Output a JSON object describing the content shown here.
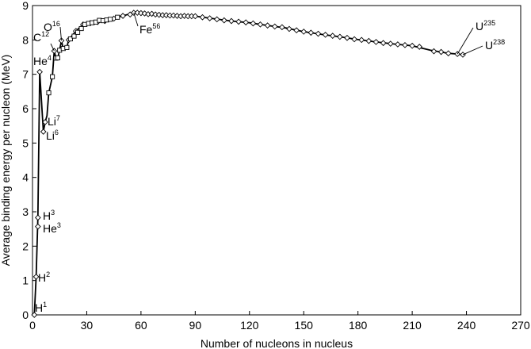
{
  "chart_data": {
    "type": "scatter",
    "title": "",
    "xlabel": "Number of nucleons in nucleus",
    "ylabel": "Average binding energy per nucleon (MeV)",
    "xlim": [
      0,
      270
    ],
    "ylim": [
      0,
      9
    ],
    "xticks": [
      0,
      30,
      60,
      90,
      120,
      150,
      180,
      210,
      240,
      270
    ],
    "yticks": [
      0,
      1,
      2,
      3,
      4,
      5,
      6,
      7,
      8,
      9
    ],
    "grid": false,
    "series": [
      {
        "marker": "diamond",
        "points": [
          [
            1,
            0
          ],
          [
            2,
            1.11
          ],
          [
            3,
            2.83
          ],
          [
            3,
            2.57
          ],
          [
            4,
            7.07
          ],
          [
            6,
            5.33
          ],
          [
            7,
            5.61
          ],
          [
            12,
            7.68
          ],
          [
            16,
            7.98
          ],
          [
            56,
            8.79
          ],
          [
            235,
            7.59
          ],
          [
            238,
            7.57
          ],
          [
            20,
            8.0
          ],
          [
            24,
            8.26
          ],
          [
            28,
            8.45
          ],
          [
            32,
            8.49
          ],
          [
            36,
            8.52
          ],
          [
            40,
            8.55
          ],
          [
            45,
            8.62
          ],
          [
            50,
            8.7
          ],
          [
            54,
            8.74
          ],
          [
            58,
            8.79
          ],
          [
            60,
            8.78
          ],
          [
            62,
            8.77
          ],
          [
            64,
            8.75
          ],
          [
            66,
            8.76
          ],
          [
            68,
            8.74
          ],
          [
            70,
            8.73
          ],
          [
            72,
            8.72
          ],
          [
            74,
            8.72
          ],
          [
            76,
            8.71
          ],
          [
            78,
            8.71
          ],
          [
            80,
            8.7
          ],
          [
            82,
            8.69
          ],
          [
            84,
            8.7
          ],
          [
            86,
            8.69
          ],
          [
            88,
            8.69
          ],
          [
            90,
            8.69
          ],
          [
            94,
            8.66
          ],
          [
            98,
            8.63
          ],
          [
            102,
            8.6
          ],
          [
            106,
            8.57
          ],
          [
            110,
            8.55
          ],
          [
            114,
            8.53
          ],
          [
            118,
            8.51
          ],
          [
            122,
            8.48
          ],
          [
            126,
            8.45
          ],
          [
            130,
            8.42
          ],
          [
            134,
            8.39
          ],
          [
            138,
            8.37
          ],
          [
            142,
            8.32
          ],
          [
            146,
            8.28
          ],
          [
            150,
            8.24
          ],
          [
            154,
            8.21
          ],
          [
            158,
            8.18
          ],
          [
            162,
            8.15
          ],
          [
            166,
            8.12
          ],
          [
            170,
            8.09
          ],
          [
            174,
            8.06
          ],
          [
            178,
            8.02
          ],
          [
            182,
            8.0
          ],
          [
            186,
            7.97
          ],
          [
            190,
            7.94
          ],
          [
            194,
            7.91
          ],
          [
            198,
            7.89
          ],
          [
            202,
            7.87
          ],
          [
            206,
            7.85
          ],
          [
            210,
            7.83
          ],
          [
            214,
            7.8
          ],
          [
            222,
            7.67
          ],
          [
            226,
            7.65
          ],
          [
            230,
            7.61
          ]
        ]
      },
      {
        "marker": "square",
        "points": [
          [
            9,
            6.46
          ],
          [
            11,
            6.93
          ],
          [
            13,
            7.47
          ],
          [
            14,
            7.48
          ],
          [
            15,
            7.7
          ],
          [
            17,
            7.75
          ],
          [
            19,
            7.78
          ],
          [
            21,
            8.03
          ],
          [
            23,
            8.11
          ],
          [
            25,
            8.22
          ],
          [
            27,
            8.33
          ],
          [
            29,
            8.45
          ],
          [
            31,
            8.48
          ],
          [
            33,
            8.5
          ],
          [
            35,
            8.52
          ],
          [
            37,
            8.57
          ],
          [
            39,
            8.56
          ],
          [
            41,
            8.58
          ],
          [
            43,
            8.6
          ],
          [
            47,
            8.66
          ]
        ]
      }
    ],
    "curve": [
      [
        1,
        0
      ],
      [
        2,
        1.11
      ],
      [
        3,
        2.83
      ],
      [
        4,
        7.07
      ],
      [
        6,
        5.33
      ],
      [
        7,
        5.61
      ],
      [
        8,
        5.8
      ],
      [
        9,
        6.46
      ],
      [
        11,
        6.93
      ],
      [
        12,
        7.68
      ],
      [
        13,
        7.47
      ],
      [
        14,
        7.48
      ],
      [
        15,
        7.7
      ],
      [
        16,
        7.98
      ],
      [
        17,
        7.75
      ],
      [
        19,
        7.78
      ],
      [
        20,
        8.0
      ],
      [
        24,
        8.26
      ],
      [
        28,
        8.45
      ],
      [
        32,
        8.49
      ],
      [
        40,
        8.55
      ],
      [
        48,
        8.67
      ],
      [
        56,
        8.79
      ],
      [
        62,
        8.77
      ],
      [
        70,
        8.73
      ],
      [
        80,
        8.7
      ],
      [
        90,
        8.69
      ],
      [
        100,
        8.62
      ],
      [
        110,
        8.55
      ],
      [
        120,
        8.5
      ],
      [
        130,
        8.42
      ],
      [
        140,
        8.35
      ],
      [
        150,
        8.24
      ],
      [
        160,
        8.16
      ],
      [
        170,
        8.09
      ],
      [
        180,
        8.01
      ],
      [
        190,
        7.94
      ],
      [
        200,
        7.88
      ],
      [
        210,
        7.83
      ],
      [
        220,
        7.7
      ],
      [
        230,
        7.61
      ],
      [
        235,
        7.59
      ],
      [
        238,
        7.57
      ]
    ],
    "annotations": [
      {
        "base": "H",
        "sup": "1",
        "x": 1,
        "y": 0
      },
      {
        "base": "H",
        "sup": "2",
        "x": 2,
        "y": 1.11
      },
      {
        "base": "H",
        "sup": "3",
        "x": 3,
        "y": 2.83
      },
      {
        "base": "He",
        "sup": "3",
        "x": 3,
        "y": 2.57
      },
      {
        "base": "He",
        "sup": "4",
        "x": 4,
        "y": 7.07
      },
      {
        "base": "Li",
        "sup": "6",
        "x": 6,
        "y": 5.33
      },
      {
        "base": "Li",
        "sup": "7",
        "x": 7,
        "y": 5.61
      },
      {
        "base": "C",
        "sup": "12",
        "x": 12,
        "y": 7.68
      },
      {
        "base": "O",
        "sup": "16",
        "x": 16,
        "y": 7.98
      },
      {
        "base": "Fe",
        "sup": "56",
        "x": 56,
        "y": 8.79
      },
      {
        "base": "U",
        "sup": "235",
        "x": 235,
        "y": 7.59
      },
      {
        "base": "U",
        "sup": "238",
        "x": 238,
        "y": 7.57
      }
    ]
  }
}
